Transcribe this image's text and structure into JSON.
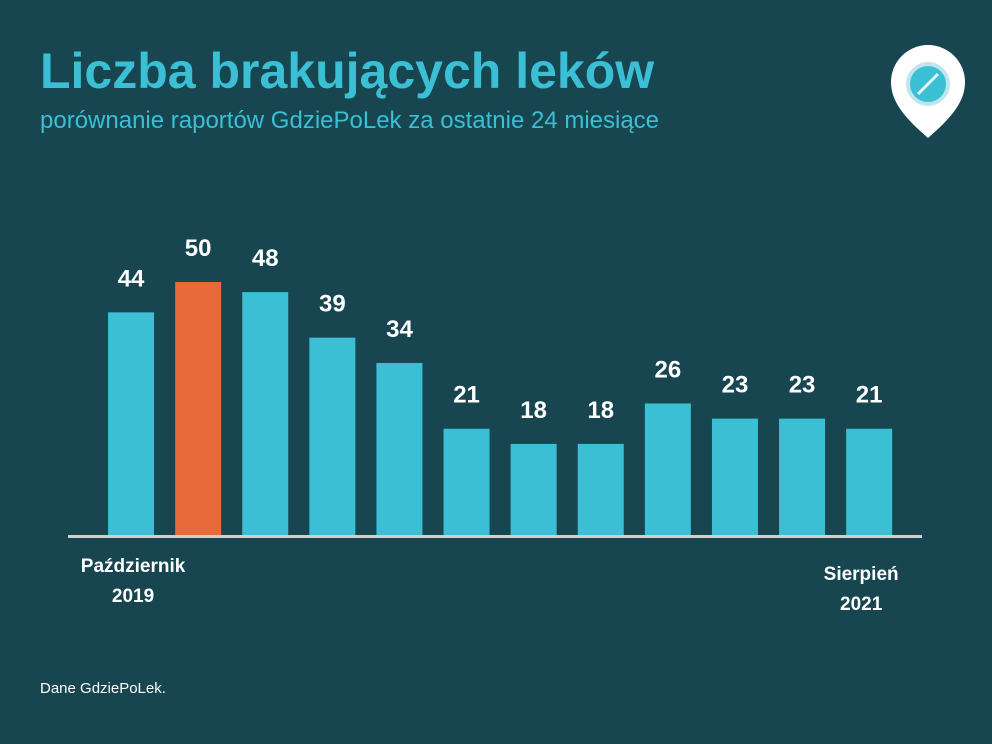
{
  "chart_data": {
    "type": "bar",
    "title": "Liczba brakujących leków",
    "subtitle": "porównanie raportów GdziePoLek za ostatnie 24 miesiące",
    "source": "Dane GdziePoLek.",
    "categories": [
      "Październik 2019",
      null,
      null,
      null,
      null,
      null,
      null,
      null,
      null,
      null,
      null,
      "Sierpień 2021"
    ],
    "values": [
      44,
      50,
      48,
      39,
      34,
      21,
      18,
      18,
      26,
      23,
      23,
      21
    ],
    "colors": [
      "#3bbfd4",
      "#e8693a",
      "#3bbfd4",
      "#3bbfd4",
      "#3bbfd4",
      "#3bbfd4",
      "#3bbfd4",
      "#3bbfd4",
      "#3bbfd4",
      "#3bbfd4",
      "#3bbfd4",
      "#3bbfd4"
    ],
    "ylim": [
      0,
      50
    ]
  }
}
